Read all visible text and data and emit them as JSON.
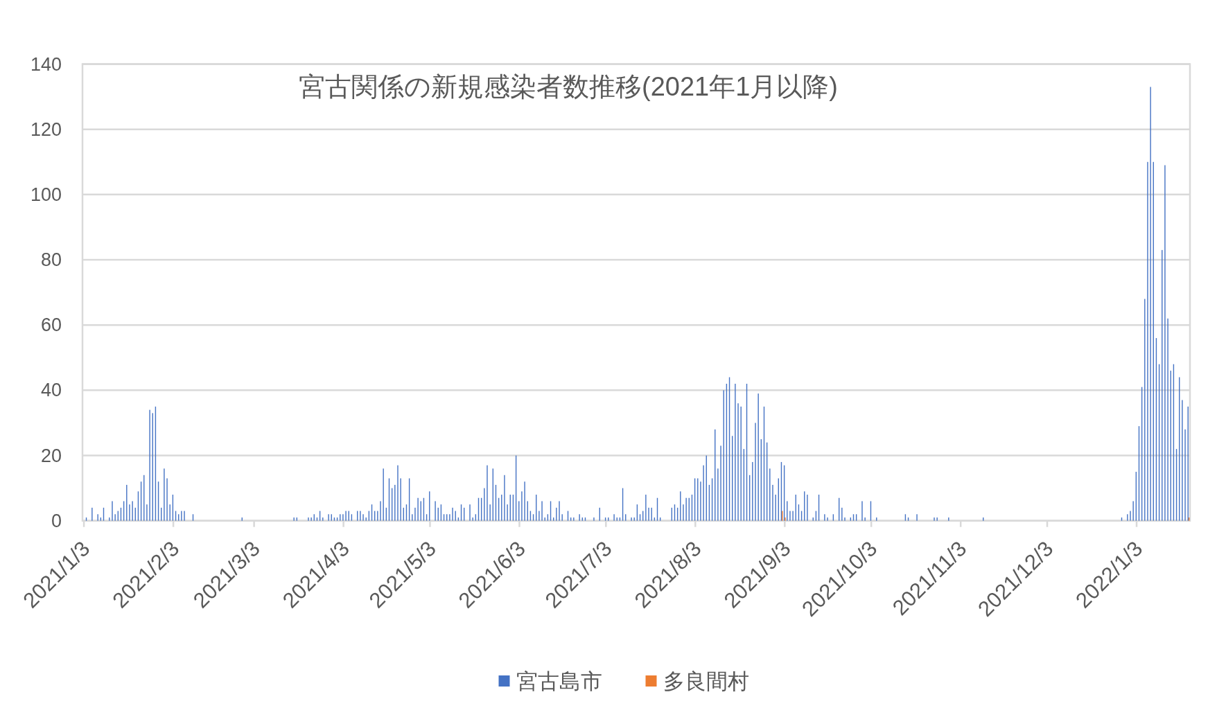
{
  "chart_data": {
    "type": "bar",
    "title": "宮古関係の新規感染者数推移(2021年1月以降)",
    "series": [
      {
        "name": "宮古島市",
        "color": "#4472c4",
        "x": [
          "2021-01-04",
          "2021-01-06",
          "2021-01-08",
          "2021-01-09",
          "2021-01-10",
          "2021-01-12",
          "2021-01-13",
          "2021-01-14",
          "2021-01-15",
          "2021-01-16",
          "2021-01-17",
          "2021-01-18",
          "2021-01-19",
          "2021-01-20",
          "2021-01-21",
          "2021-01-22",
          "2021-01-23",
          "2021-01-24",
          "2021-01-25",
          "2021-01-26",
          "2021-01-27",
          "2021-01-28",
          "2021-01-29",
          "2021-01-30",
          "2021-01-31",
          "2021-02-01",
          "2021-02-02",
          "2021-02-03",
          "2021-02-04",
          "2021-02-05",
          "2021-02-06",
          "2021-02-07",
          "2021-02-10",
          "2021-02-27",
          "2021-03-17",
          "2021-03-18",
          "2021-03-22",
          "2021-03-23",
          "2021-03-24",
          "2021-03-25",
          "2021-03-26",
          "2021-03-27",
          "2021-03-29",
          "2021-03-30",
          "2021-03-31",
          "2021-04-01",
          "2021-04-02",
          "2021-04-03",
          "2021-04-04",
          "2021-04-05",
          "2021-04-06",
          "2021-04-08",
          "2021-04-09",
          "2021-04-10",
          "2021-04-11",
          "2021-04-12",
          "2021-04-13",
          "2021-04-14",
          "2021-04-15",
          "2021-04-16",
          "2021-04-17",
          "2021-04-18",
          "2021-04-19",
          "2021-04-20",
          "2021-04-21",
          "2021-04-22",
          "2021-04-23",
          "2021-04-24",
          "2021-04-25",
          "2021-04-26",
          "2021-04-27",
          "2021-04-28",
          "2021-04-29",
          "2021-04-30",
          "2021-05-01",
          "2021-05-02",
          "2021-05-03",
          "2021-05-05",
          "2021-05-06",
          "2021-05-07",
          "2021-05-08",
          "2021-05-09",
          "2021-05-10",
          "2021-05-11",
          "2021-05-12",
          "2021-05-13",
          "2021-05-14",
          "2021-05-15",
          "2021-05-17",
          "2021-05-18",
          "2021-05-19",
          "2021-05-20",
          "2021-05-21",
          "2021-05-22",
          "2021-05-23",
          "2021-05-24",
          "2021-05-25",
          "2021-05-26",
          "2021-05-27",
          "2021-05-28",
          "2021-05-29",
          "2021-05-30",
          "2021-05-31",
          "2021-06-01",
          "2021-06-02",
          "2021-06-03",
          "2021-06-04",
          "2021-06-05",
          "2021-06-06",
          "2021-06-07",
          "2021-06-08",
          "2021-06-09",
          "2021-06-10",
          "2021-06-11",
          "2021-06-12",
          "2021-06-13",
          "2021-06-14",
          "2021-06-15",
          "2021-06-16",
          "2021-06-17",
          "2021-06-18",
          "2021-06-20",
          "2021-06-21",
          "2021-06-22",
          "2021-06-24",
          "2021-06-25",
          "2021-06-26",
          "2021-06-29",
          "2021-07-01",
          "2021-07-03",
          "2021-07-04",
          "2021-07-06",
          "2021-07-07",
          "2021-07-08",
          "2021-07-09",
          "2021-07-10",
          "2021-07-12",
          "2021-07-13",
          "2021-07-14",
          "2021-07-15",
          "2021-07-16",
          "2021-07-17",
          "2021-07-18",
          "2021-07-19",
          "2021-07-20",
          "2021-07-21",
          "2021-07-22",
          "2021-07-26",
          "2021-07-27",
          "2021-07-28",
          "2021-07-29",
          "2021-07-30",
          "2021-07-31",
          "2021-08-01",
          "2021-08-02",
          "2021-08-03",
          "2021-08-04",
          "2021-08-05",
          "2021-08-06",
          "2021-08-07",
          "2021-08-08",
          "2021-08-09",
          "2021-08-10",
          "2021-08-11",
          "2021-08-12",
          "2021-08-13",
          "2021-08-14",
          "2021-08-15",
          "2021-08-16",
          "2021-08-17",
          "2021-08-18",
          "2021-08-19",
          "2021-08-20",
          "2021-08-21",
          "2021-08-22",
          "2021-08-23",
          "2021-08-24",
          "2021-08-25",
          "2021-08-26",
          "2021-08-27",
          "2021-08-28",
          "2021-08-29",
          "2021-08-30",
          "2021-08-31",
          "2021-09-01",
          "2021-09-02",
          "2021-09-03",
          "2021-09-04",
          "2021-09-05",
          "2021-09-06",
          "2021-09-07",
          "2021-09-08",
          "2021-09-09",
          "2021-09-10",
          "2021-09-11",
          "2021-09-13",
          "2021-09-14",
          "2021-09-15",
          "2021-09-17",
          "2021-09-18",
          "2021-09-20",
          "2021-09-22",
          "2021-09-23",
          "2021-09-24",
          "2021-09-26",
          "2021-09-27",
          "2021-09-28",
          "2021-09-30",
          "2021-10-01",
          "2021-10-03",
          "2021-10-05",
          "2021-10-15",
          "2021-10-16",
          "2021-10-19",
          "2021-10-25",
          "2021-10-26",
          "2021-10-30",
          "2021-11-11",
          "2021-12-29",
          "2021-12-31",
          "2022-01-01",
          "2022-01-02",
          "2022-01-03",
          "2022-01-04",
          "2022-01-05",
          "2022-01-06",
          "2022-01-07",
          "2022-01-08",
          "2022-01-09",
          "2022-01-10",
          "2022-01-11",
          "2022-01-12",
          "2022-01-13",
          "2022-01-14",
          "2022-01-15",
          "2022-01-16",
          "2022-01-17",
          "2022-01-18",
          "2022-01-19",
          "2022-01-20",
          "2022-01-21"
        ],
        "values": [
          1,
          4,
          2,
          1,
          4,
          1,
          6,
          2,
          3,
          4,
          6,
          11,
          5,
          6,
          4,
          9,
          12,
          14,
          5,
          34,
          33,
          35,
          12,
          4,
          16,
          13,
          5,
          8,
          3,
          2,
          3,
          3,
          2,
          1,
          1,
          1,
          1,
          1,
          2,
          1,
          3,
          1,
          2,
          2,
          1,
          1,
          2,
          2,
          3,
          3,
          2,
          3,
          3,
          2,
          1,
          3,
          5,
          3,
          3,
          6,
          16,
          4,
          13,
          10,
          11,
          17,
          13,
          4,
          5,
          13,
          2,
          4,
          7,
          6,
          7,
          2,
          9,
          6,
          4,
          5,
          2,
          2,
          2,
          4,
          3,
          1,
          5,
          4,
          5,
          1,
          2,
          7,
          7,
          10,
          17,
          5,
          16,
          11,
          7,
          8,
          14,
          5,
          8,
          8,
          20,
          6,
          9,
          12,
          6,
          3,
          2,
          8,
          3,
          6,
          1,
          2,
          6,
          1,
          4,
          6,
          2,
          3,
          1,
          1,
          2,
          1,
          1,
          1,
          4,
          1,
          1,
          2,
          1,
          1,
          10,
          2,
          1,
          1,
          5,
          2,
          3,
          8,
          4,
          4,
          1,
          7,
          1,
          4,
          5,
          4,
          9,
          5,
          7,
          7,
          8,
          13,
          13,
          12,
          17,
          20,
          11,
          13,
          28,
          16,
          23,
          40,
          42,
          44,
          26,
          42,
          36,
          35,
          22,
          42,
          14,
          18,
          30,
          39,
          25,
          35,
          24,
          16,
          11,
          8,
          13,
          18,
          17,
          6,
          3,
          3,
          8,
          5,
          3,
          9,
          8,
          1,
          3,
          8,
          2,
          1,
          2,
          7,
          4,
          1,
          1,
          2,
          2,
          6,
          1,
          6,
          1,
          2,
          1,
          2,
          1,
          1,
          1,
          1,
          1,
          2,
          3,
          6,
          15,
          29,
          41,
          68,
          110,
          133,
          110,
          56,
          48,
          83,
          109,
          62,
          46,
          48,
          22,
          44,
          37,
          28,
          35
        ]
      },
      {
        "name": "多良間村",
        "color": "#ed7d31",
        "x": [
          "2021-09-02",
          "2021-09-03",
          "2022-01-21"
        ],
        "values": [
          3,
          1,
          1
        ]
      }
    ],
    "xlim": [
      "2021-01-02T12:00",
      "2022-01-21T12:00"
    ],
    "xticks": [
      {
        "value": "2021-01-03",
        "label": "2021/1/3"
      },
      {
        "value": "2021-02-03",
        "label": "2021/2/3"
      },
      {
        "value": "2021-03-03",
        "label": "2021/3/3"
      },
      {
        "value": "2021-04-03",
        "label": "2021/4/3"
      },
      {
        "value": "2021-05-03",
        "label": "2021/5/3"
      },
      {
        "value": "2021-06-03",
        "label": "2021/6/3"
      },
      {
        "value": "2021-07-03",
        "label": "2021/7/3"
      },
      {
        "value": "2021-08-03",
        "label": "2021/8/3"
      },
      {
        "value": "2021-09-03",
        "label": "2021/9/3"
      },
      {
        "value": "2021-10-03",
        "label": "2021/10/3"
      },
      {
        "value": "2021-11-03",
        "label": "2021/11/3"
      },
      {
        "value": "2021-12-03",
        "label": "2021/12/3"
      },
      {
        "value": "2022-01-03",
        "label": "2022/1/3"
      }
    ],
    "ylim": [
      0,
      140
    ],
    "yticks": [
      0,
      20,
      40,
      60,
      80,
      100,
      120,
      140
    ],
    "grid": "y",
    "legend": "bottom"
  }
}
